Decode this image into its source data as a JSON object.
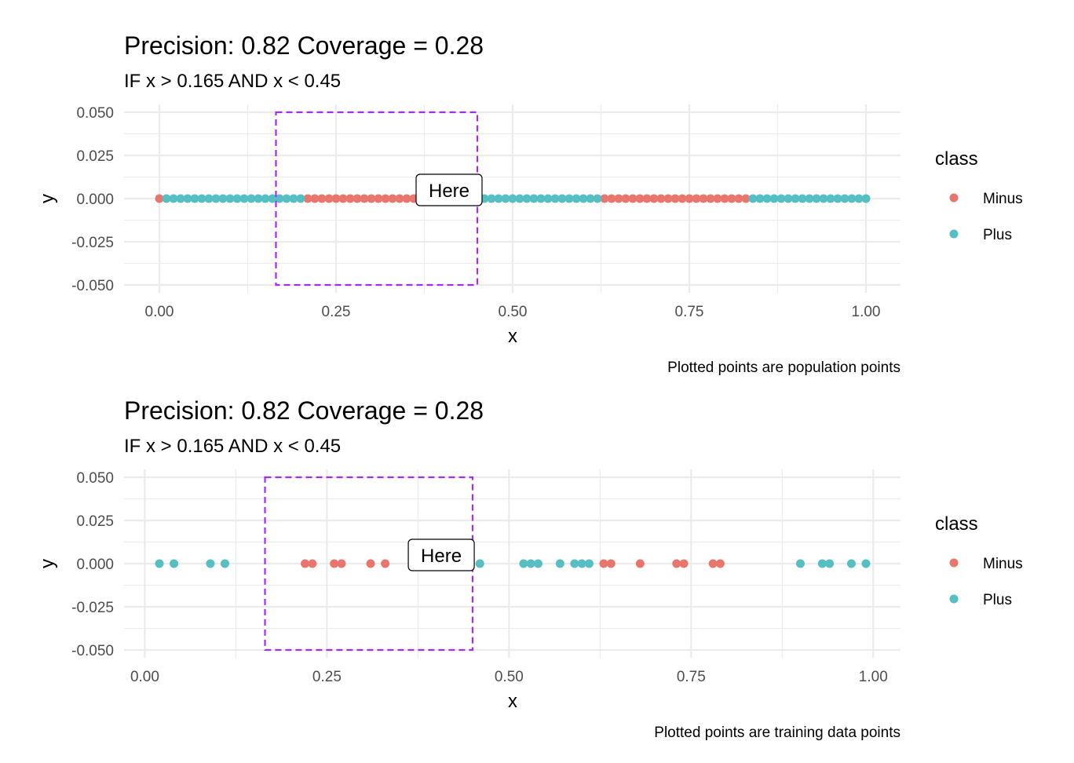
{
  "colors": {
    "Minus": "#E8766D",
    "Plus": "#55BFC4",
    "rule_box": "#A030F0"
  },
  "legend": {
    "title": "class",
    "items": [
      {
        "label": "Minus",
        "color": "#E8766D"
      },
      {
        "label": "Plus",
        "color": "#55BFC4"
      }
    ]
  },
  "chart_data": [
    {
      "type": "scatter",
      "title": "Precision: 0.82 Coverage = 0.28",
      "subtitle": "IF x > 0.165 AND x < 0.45",
      "caption": "Plotted points are population points",
      "xlabel": "x",
      "ylabel": "y",
      "xlim": [
        0,
        1
      ],
      "ylim": [
        -0.05,
        0.05
      ],
      "x_ticks": [
        "0.00",
        "0.25",
        "0.50",
        "0.75",
        "1.00"
      ],
      "y_ticks": [
        "0.050",
        "0.025",
        "0.000",
        "-0.025",
        "-0.050"
      ],
      "grid": true,
      "legend_position": "right",
      "rule_box": {
        "x_min": 0.165,
        "x_max": 0.45,
        "y_min": -0.05,
        "y_max": 0.05
      },
      "annotation": {
        "text": "Here",
        "x": 0.41,
        "y": 0.0
      },
      "series": [
        {
          "name": "Minus",
          "y": 0.0,
          "x": [
            0.0,
            0.21,
            0.22,
            0.23,
            0.24,
            0.25,
            0.26,
            0.27,
            0.28,
            0.29,
            0.3,
            0.31,
            0.32,
            0.33,
            0.34,
            0.35,
            0.36,
            0.37,
            0.38,
            0.39,
            0.4,
            0.41,
            0.42,
            0.43,
            0.44,
            0.45,
            0.63,
            0.64,
            0.65,
            0.66,
            0.67,
            0.68,
            0.69,
            0.7,
            0.71,
            0.72,
            0.73,
            0.74,
            0.75,
            0.76,
            0.77,
            0.78,
            0.79,
            0.8,
            0.81,
            0.82,
            0.83
          ]
        },
        {
          "name": "Plus",
          "y": 0.0,
          "x": [
            0.01,
            0.02,
            0.03,
            0.04,
            0.05,
            0.06,
            0.07,
            0.08,
            0.09,
            0.1,
            0.11,
            0.12,
            0.13,
            0.14,
            0.15,
            0.16,
            0.17,
            0.18,
            0.19,
            0.2,
            0.46,
            0.47,
            0.48,
            0.49,
            0.5,
            0.51,
            0.52,
            0.53,
            0.54,
            0.55,
            0.56,
            0.57,
            0.58,
            0.59,
            0.6,
            0.61,
            0.62,
            0.84,
            0.85,
            0.86,
            0.87,
            0.88,
            0.89,
            0.9,
            0.91,
            0.92,
            0.93,
            0.94,
            0.95,
            0.96,
            0.97,
            0.98,
            0.99,
            1.0
          ]
        }
      ]
    },
    {
      "type": "scatter",
      "title": "Precision: 0.82 Coverage = 0.28",
      "subtitle": "IF x > 0.165 AND x < 0.45",
      "caption": "Plotted points are training data points",
      "xlabel": "x",
      "ylabel": "y",
      "xlim": [
        0.02,
        0.99
      ],
      "ylim": [
        -0.05,
        0.05
      ],
      "x_ticks": [
        "0.00",
        "0.25",
        "0.50",
        "0.75",
        "1.00"
      ],
      "y_ticks": [
        "0.050",
        "0.025",
        "0.000",
        "-0.025",
        "-0.050"
      ],
      "grid": true,
      "legend_position": "right",
      "rule_box": {
        "x_min": 0.165,
        "x_max": 0.45,
        "y_min": -0.05,
        "y_max": 0.05
      },
      "annotation": {
        "text": "Here",
        "x": 0.407,
        "y": 0.0
      },
      "series": [
        {
          "name": "Minus",
          "y": 0.0,
          "x": [
            0.22,
            0.23,
            0.26,
            0.27,
            0.31,
            0.33,
            0.63,
            0.64,
            0.68,
            0.73,
            0.74,
            0.78,
            0.79
          ]
        },
        {
          "name": "Plus",
          "y": 0.0,
          "x": [
            0.02,
            0.04,
            0.09,
            0.11,
            0.46,
            0.52,
            0.53,
            0.54,
            0.57,
            0.59,
            0.6,
            0.61,
            0.9,
            0.93,
            0.94,
            0.97,
            0.99
          ]
        }
      ]
    }
  ]
}
